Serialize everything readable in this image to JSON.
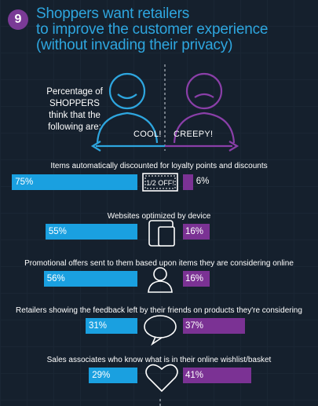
{
  "badge": "9",
  "title_lines": [
    "Shoppers want retailers",
    "to improve the customer experience",
    "(without invading their privacy)"
  ],
  "intro_lines": [
    "Percentage of",
    "SHOPPERS",
    "think that the",
    "following are:"
  ],
  "labels": {
    "cool": "COOL!",
    "creepy": "CREEPY!"
  },
  "chart_data": {
    "type": "bar",
    "series": [
      {
        "name": "COOL!",
        "values": [
          75,
          55,
          56,
          31,
          29
        ]
      },
      {
        "name": "CREEPY!",
        "values": [
          6,
          16,
          16,
          37,
          41
        ]
      }
    ],
    "categories": [
      "Items automatically discounted for loyalty points and discounts",
      "Websites optimized by device",
      "Promotional offers sent to them based upon items they are considering online",
      "Retailers showing the feedback left by their friends on products they're considering",
      "Sales associates who know what is in their online wishlist/basket"
    ],
    "value_labels": {
      "cool": [
        "75%",
        "55%",
        "56%",
        "31%",
        "29%"
      ],
      "creepy": [
        "6%",
        "16%",
        "16%",
        "37%",
        "41%"
      ]
    },
    "icons": [
      "coupon-icon",
      "devices-icon",
      "person-icon",
      "speech-bubble-icon",
      "heart-icon"
    ],
    "coupon_text": "1/2 OFF!",
    "colors": {
      "cool": "#1aa0e0",
      "creepy": "#7b3294",
      "title": "#2ea6df",
      "background": "#15202d"
    }
  }
}
